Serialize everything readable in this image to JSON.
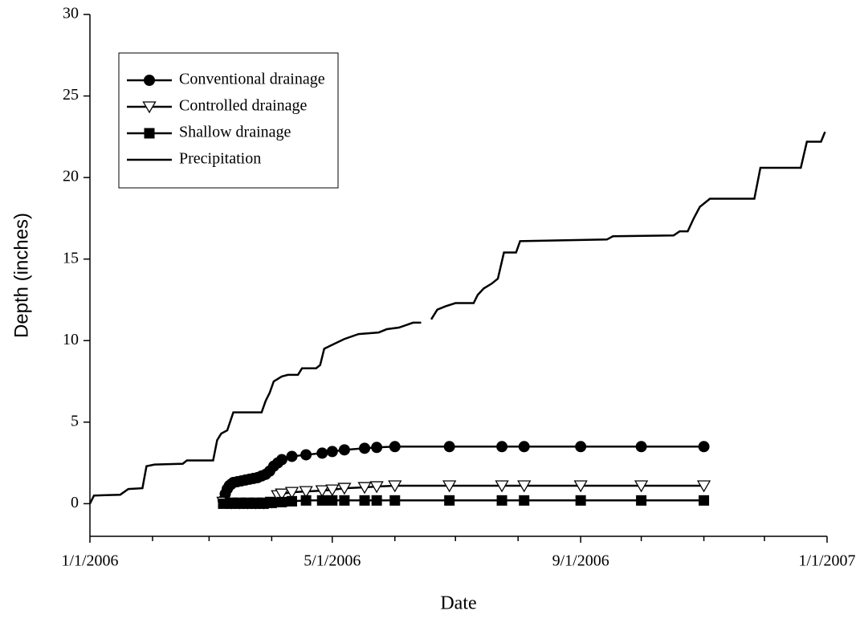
{
  "chart_data": {
    "type": "line",
    "x_label": "Date",
    "y_label": "Depth (inches)",
    "xlim": [
      "1/1/2006",
      "1/1/2007"
    ],
    "xticks": [
      "1/1/2006",
      "5/1/2006",
      "9/1/2006",
      "1/1/2007"
    ],
    "xminorticks": [
      "2/1/2006",
      "3/1/2006",
      "4/1/2006",
      "6/1/2006",
      "7/1/2006",
      "8/1/2006",
      "10/1/2006",
      "11/1/2006",
      "12/1/2006"
    ],
    "ylim": [
      -2,
      30
    ],
    "yticks": [
      0,
      5,
      10,
      15,
      20,
      25,
      30
    ],
    "legend_position": "upper left",
    "series": [
      {
        "name": "Conventional drainage",
        "color": "#000000",
        "marker": "circle",
        "x": [
          "3/8/2006",
          "3/9/2006",
          "3/10/2006",
          "3/11/2006",
          "3/12/2006",
          "3/13/2006",
          "3/15/2006",
          "3/17/2006",
          "3/19/2006",
          "3/21/2006",
          "3/23/2006",
          "3/25/2006",
          "3/27/2006",
          "3/29/2006",
          "3/31/2006",
          "4/2/2006",
          "4/4/2006",
          "4/6/2006",
          "4/11/2006",
          "4/18/2006",
          "4/26/2006",
          "5/1/2006",
          "5/7/2006",
          "5/17/2006",
          "5/23/2006",
          "6/1/2006",
          "6/28/2006",
          "7/24/2006",
          "8/4/2006",
          "9/1/2006",
          "10/1/2006",
          "11/1/2006"
        ],
        "values": [
          0.2,
          0.6,
          0.9,
          1.1,
          1.2,
          1.3,
          1.35,
          1.4,
          1.45,
          1.5,
          1.55,
          1.6,
          1.7,
          1.8,
          2.0,
          2.3,
          2.5,
          2.7,
          2.9,
          3.0,
          3.1,
          3.2,
          3.3,
          3.4,
          3.45,
          3.5,
          3.5,
          3.5,
          3.5,
          3.5,
          3.5,
          3.5
        ]
      },
      {
        "name": "Controlled drainage",
        "color": "#000000",
        "marker": "triangle-down",
        "x": [
          "3/8/2006",
          "3/12/2006",
          "3/16/2006",
          "3/20/2006",
          "3/24/2006",
          "3/28/2006",
          "4/1/2006",
          "4/4/2006",
          "4/6/2006",
          "4/11/2006",
          "4/18/2006",
          "4/26/2006",
          "5/1/2006",
          "5/7/2006",
          "5/17/2006",
          "5/23/2006",
          "6/1/2006",
          "6/28/2006",
          "7/24/2006",
          "8/4/2006",
          "9/1/2006",
          "10/1/2006",
          "11/1/2006"
        ],
        "values": [
          0.1,
          0.05,
          0.05,
          0.05,
          0.05,
          0.05,
          0.1,
          0.5,
          0.6,
          0.7,
          0.75,
          0.8,
          0.85,
          0.95,
          1.0,
          1.05,
          1.1,
          1.1,
          1.1,
          1.1,
          1.1,
          1.1,
          1.1
        ]
      },
      {
        "name": "Shallow drainage",
        "color": "#000000",
        "marker": "square",
        "x": [
          "3/8/2006",
          "3/12/2006",
          "3/16/2006",
          "3/20/2006",
          "3/24/2006",
          "3/28/2006",
          "4/1/2006",
          "4/6/2006",
          "4/11/2006",
          "4/18/2006",
          "4/26/2006",
          "5/1/2006",
          "5/7/2006",
          "5/17/2006",
          "5/23/2006",
          "6/1/2006",
          "6/28/2006",
          "7/24/2006",
          "8/4/2006",
          "9/1/2006",
          "10/1/2006",
          "11/1/2006"
        ],
        "values": [
          0,
          0,
          0,
          0,
          0,
          0,
          0.05,
          0.1,
          0.15,
          0.2,
          0.2,
          0.2,
          0.2,
          0.2,
          0.2,
          0.2,
          0.2,
          0.2,
          0.2,
          0.2,
          0.2,
          0.2
        ]
      },
      {
        "name": "Precipitation",
        "color": "#000000",
        "marker": null,
        "x": [
          "1/1/2006",
          "1/3/2006",
          "1/16/2006",
          "1/20/2006",
          "1/27/2006",
          "1/29/2006",
          "2/2/2006",
          "2/16/2006",
          "2/18/2006",
          "3/3/2006",
          "3/5/2006",
          "3/7/2006",
          "3/10/2006",
          "3/13/2006",
          "3/27/2006",
          "3/29/2006",
          "3/31/2006",
          "4/2/2006",
          "4/6/2006",
          "4/9/2006",
          "4/14/2006",
          "4/16/2006",
          "4/23/2006",
          "4/25/2006",
          "4/27/2006",
          "5/2/2006",
          "5/7/2006",
          "5/14/2006",
          "5/24/2006",
          "5/28/2006",
          "6/3/2006",
          "6/10/2006",
          "6/14/2006",
          "6/16/2006",
          "6/19/2006",
          "6/22/2006",
          "6/26/2006",
          "7/1/2006",
          "7/10/2006",
          "7/12/2006",
          "7/15/2006",
          "7/19/2006",
          "7/22/2006",
          "7/25/2006",
          "7/31/2006",
          "8/2/2006",
          "9/14/2006",
          "9/17/2006",
          "10/17/2006",
          "10/20/2006",
          "10/24/2006",
          "10/27/2006",
          "10/30/2006",
          "11/4/2006",
          "11/26/2006",
          "11/29/2006",
          "12/19/2006",
          "12/22/2006",
          "12/29/2006",
          "12/31/2006"
        ],
        "values": [
          0,
          0.5,
          0.55,
          0.9,
          0.95,
          2.3,
          2.4,
          2.45,
          2.65,
          2.65,
          3.9,
          4.3,
          4.5,
          5.6,
          5.6,
          6.3,
          6.8,
          7.5,
          7.8,
          7.9,
          7.9,
          8.3,
          8.3,
          8.5,
          9.5,
          9.8,
          10.1,
          10.4,
          10.5,
          10.7,
          10.8,
          11.1,
          11.1,
          null,
          11.3,
          11.9,
          12.1,
          12.3,
          12.3,
          12.8,
          13.2,
          13.5,
          13.8,
          15.4,
          15.4,
          16.1,
          16.2,
          16.4,
          16.45,
          16.7,
          16.7,
          17.5,
          18.2,
          18.7,
          18.7,
          20.6,
          20.6,
          22.2,
          22.2,
          22.8
        ]
      }
    ]
  }
}
